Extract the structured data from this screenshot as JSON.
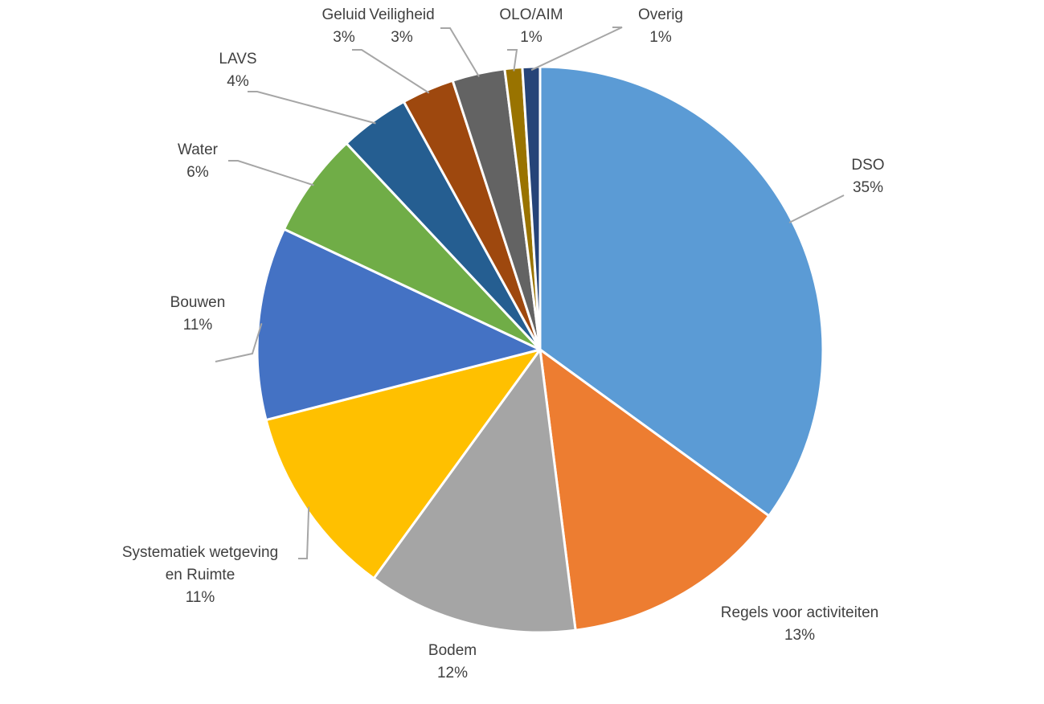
{
  "chart_data": {
    "type": "pie",
    "title": "",
    "start_angle_deg": 0,
    "direction": "clockwise",
    "slices": [
      {
        "name": "DSO",
        "value": 35,
        "label_lines": [
          "DSO"
        ],
        "pct": "35%",
        "color": "#5B9BD5"
      },
      {
        "name": "Regels voor activiteiten",
        "value": 13,
        "label_lines": [
          "Regels voor activiteiten"
        ],
        "pct": "13%",
        "color": "#ED7D31"
      },
      {
        "name": "Bodem",
        "value": 12,
        "label_lines": [
          "Bodem"
        ],
        "pct": "12%",
        "color": "#A5A5A5"
      },
      {
        "name": "Systematiek wetgeving en Ruimte",
        "value": 11,
        "label_lines": [
          "Systematiek wetgeving",
          "en Ruimte"
        ],
        "pct": "11%",
        "color": "#FFC000"
      },
      {
        "name": "Bouwen",
        "value": 11,
        "label_lines": [
          "Bouwen"
        ],
        "pct": "11%",
        "color": "#4472C4"
      },
      {
        "name": "Water",
        "value": 6,
        "label_lines": [
          "Water"
        ],
        "pct": "6%",
        "color": "#70AD47"
      },
      {
        "name": "LAVS",
        "value": 4,
        "label_lines": [
          "LAVS"
        ],
        "pct": "4%",
        "color": "#255E91"
      },
      {
        "name": "Geluid",
        "value": 3,
        "label_lines": [
          "Geluid"
        ],
        "pct": "3%",
        "color": "#9E480E"
      },
      {
        "name": "Veiligheid",
        "value": 3,
        "label_lines": [
          "Veiligheid"
        ],
        "pct": "3%",
        "color": "#636363"
      },
      {
        "name": "OLO/AIM",
        "value": 1,
        "label_lines": [
          "OLO/AIM"
        ],
        "pct": "1%",
        "color": "#997300"
      },
      {
        "name": "Overig",
        "value": 1,
        "label_lines": [
          "Overig"
        ],
        "pct": "1%",
        "color": "#264478"
      }
    ]
  }
}
